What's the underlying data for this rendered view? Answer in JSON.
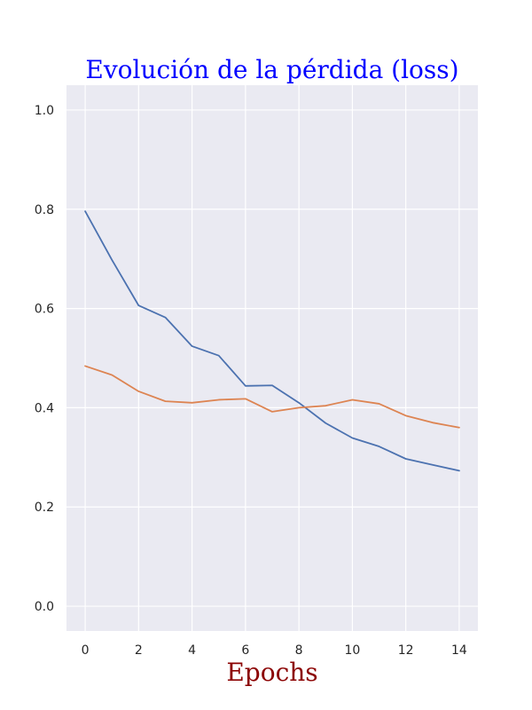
{
  "chart_data": {
    "type": "line",
    "title": "Evolución de la pérdida (loss)",
    "xlabel": "Epochs",
    "ylabel": "",
    "x": [
      0,
      1,
      2,
      3,
      4,
      5,
      6,
      7,
      8,
      9,
      10,
      11,
      12,
      13,
      14
    ],
    "xlim": [
      -0.7,
      14.7
    ],
    "ylim": [
      -0.05,
      1.05
    ],
    "xticks": [
      0,
      2,
      4,
      6,
      8,
      10,
      12,
      14
    ],
    "yticks": [
      0.0,
      0.2,
      0.4,
      0.6,
      0.8,
      1.0
    ],
    "ytick_labels": [
      "0.0",
      "0.2",
      "0.4",
      "0.6",
      "0.8",
      "1.0"
    ],
    "grid": true,
    "series": [
      {
        "color": "#4c72b0",
        "values": [
          0.796,
          0.698,
          0.606,
          0.582,
          0.524,
          0.505,
          0.444,
          0.445,
          0.41,
          0.369,
          0.339,
          0.322,
          0.297,
          0.285,
          0.273
        ]
      },
      {
        "color": "#dd8452",
        "values": [
          0.484,
          0.466,
          0.433,
          0.413,
          0.41,
          0.416,
          0.418,
          0.392,
          0.4,
          0.404,
          0.416,
          0.408,
          0.384,
          0.37,
          0.36
        ]
      }
    ],
    "colors": {
      "title": "#0000ff",
      "xlabel": "#8b0000",
      "plot_background": "#eaeaf2",
      "grid": "#ffffff"
    }
  }
}
